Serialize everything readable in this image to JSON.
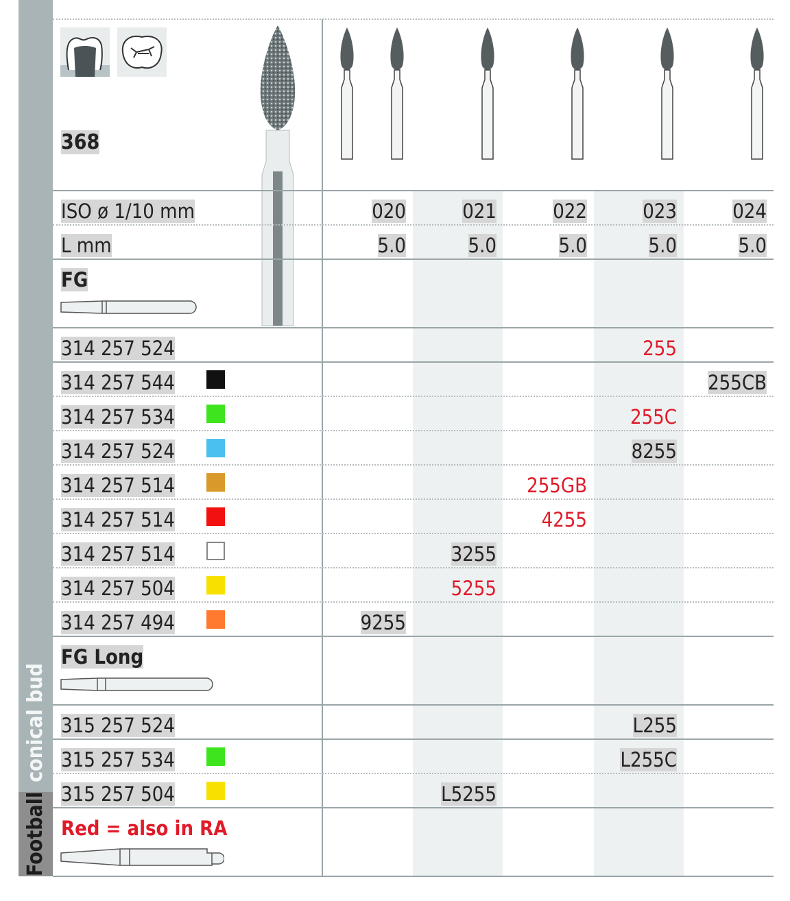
{
  "sidebar": {
    "shape": "Football",
    "name": "conical bud"
  },
  "header": {
    "figure_number": "368",
    "icons": [
      "crown-preparation-icon",
      "occlusal-fissure-icon"
    ]
  },
  "sizes": {
    "iso_label": "ISO ø 1/10 mm",
    "iso": [
      "020",
      "021",
      "022",
      "023",
      "024"
    ],
    "length_label": "L mm",
    "length": [
      "5.0",
      "5.0",
      "5.0",
      "5.0",
      "5.0"
    ]
  },
  "sections": [
    {
      "title": "FG",
      "rows": [
        {
          "ref": "314 257 524",
          "color": null,
          "col": 3,
          "value": "255",
          "red": true
        },
        {
          "ref": "314 257 544",
          "color": "#111111",
          "col": 4,
          "value": "255CB",
          "red": false
        },
        {
          "ref": "314 257 534",
          "color": "#3ee51f",
          "col": 3,
          "value": "255C",
          "red": true
        },
        {
          "ref": "314 257 524",
          "color": "#49c0ef",
          "col": 3,
          "value": "8255",
          "red": false
        },
        {
          "ref": "314 257 514",
          "color": "#d99a2b",
          "col": 2,
          "value": "255GB",
          "red": true
        },
        {
          "ref": "314 257 514",
          "color": "#f21010",
          "col": 2,
          "value": "4255",
          "red": true
        },
        {
          "ref": "314 257 514",
          "color": "#ffffff",
          "col": 1,
          "value": "3255",
          "red": false
        },
        {
          "ref": "314 257 504",
          "color": "#f8e100",
          "col": 1,
          "value": "5255",
          "red": true
        },
        {
          "ref": "314 257 494",
          "color": "#ff7a2e",
          "col": 0,
          "value": "9255",
          "red": false
        }
      ]
    },
    {
      "title": "FG Long",
      "rows": [
        {
          "ref": "315 257 524",
          "color": null,
          "col": 3,
          "value": "L255",
          "red": false
        },
        {
          "ref": "315 257 534",
          "color": "#3ee51f",
          "col": 3,
          "value": "L255C",
          "red": false
        },
        {
          "ref": "315 257 504",
          "color": "#f8e100",
          "col": 1,
          "value": "L5255",
          "red": false
        }
      ]
    }
  ],
  "legend": {
    "text": "Red = also in RA",
    "red_color": "#e01b2a"
  }
}
